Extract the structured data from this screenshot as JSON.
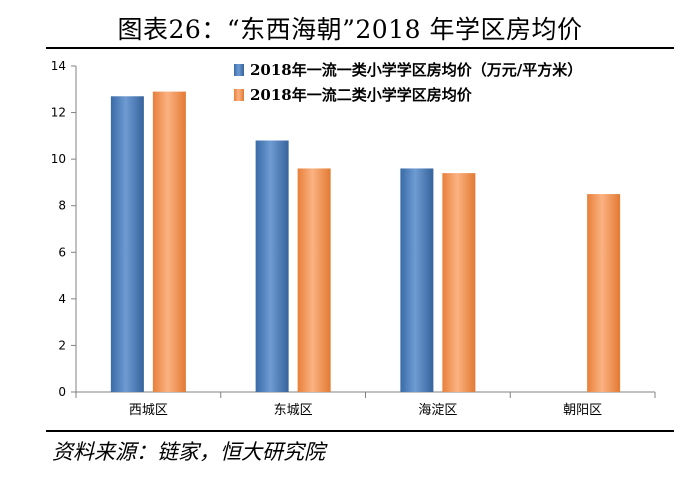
{
  "title": "图表26：“东西海朝”2018 年学区房均价",
  "source": "资料来源：链家，恒大研究院",
  "colors": {
    "series1": "#4F81BD",
    "series2": "#F79646",
    "axis": "#808080"
  },
  "chart_data": {
    "type": "bar",
    "title": "图表26：“东西海朝”2018 年学区房均价",
    "categories": [
      "西城区",
      "东城区",
      "海淀区",
      "朝阳区"
    ],
    "series": [
      {
        "name": "2018年一流一类小学学区房均价（万元/平方米）",
        "values": [
          12.7,
          10.8,
          9.6,
          null
        ]
      },
      {
        "name": "2018年一流二类小学学区房均价",
        "values": [
          12.9,
          9.6,
          9.4,
          8.5
        ]
      }
    ],
    "ylim": [
      0,
      14
    ],
    "yticks": [
      "0",
      "2",
      "4",
      "6",
      "8",
      "10",
      "12",
      "14"
    ],
    "xlabel": "",
    "ylabel": "",
    "legend": "top-right",
    "grid": false
  }
}
